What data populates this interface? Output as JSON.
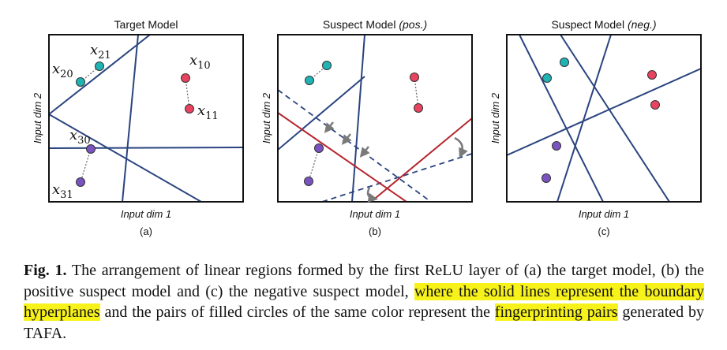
{
  "panels": [
    {
      "title": "Target Model",
      "title_parts": [
        "Target Model",
        ""
      ],
      "xlabel": "Input dim 1",
      "ylabel": "Input dim 2",
      "sublabel": "(a)",
      "point_labels": [
        {
          "base": "x",
          "sub": "21"
        },
        {
          "base": "x",
          "sub": "20"
        },
        {
          "base": "x",
          "sub": "10"
        },
        {
          "base": "x",
          "sub": "11"
        },
        {
          "base": "x",
          "sub": "30"
        },
        {
          "base": "x",
          "sub": "31"
        }
      ]
    },
    {
      "title": "Suspect Model (pos.)",
      "title_parts": [
        "Suspect Model ",
        "(pos.)"
      ],
      "xlabel": "Input dim 1",
      "ylabel": "Input dim 2",
      "sublabel": "(b)"
    },
    {
      "title": "Suspect Model (neg.)",
      "title_parts": [
        "Suspect Model ",
        "(neg.)"
      ],
      "xlabel": "Input dim 1",
      "ylabel": "Input dim 2",
      "sublabel": "(c)"
    }
  ],
  "colors": {
    "boundary_line": "#2a4480",
    "moved_line": "#b5252e",
    "teal": "#1fb3b3",
    "red": "#e8435f",
    "purple": "#7b53c1",
    "arrow": "#7a7a7a",
    "highlight": "#f7f21a"
  },
  "caption": {
    "fig_label": "Fig. 1.",
    "text_before_hl1": " The arrangement of linear regions formed by the first ReLU layer of (a) the target model, (b) the positive suspect model and (c) the negative suspect model, ",
    "highlight_1": "where the solid lines represent the boundary hyperplanes",
    "text_between": " and the pairs of filled circles of the same color represent the ",
    "highlight_2": "fingerprinting pairs",
    "text_after": " generated by TAFA."
  }
}
